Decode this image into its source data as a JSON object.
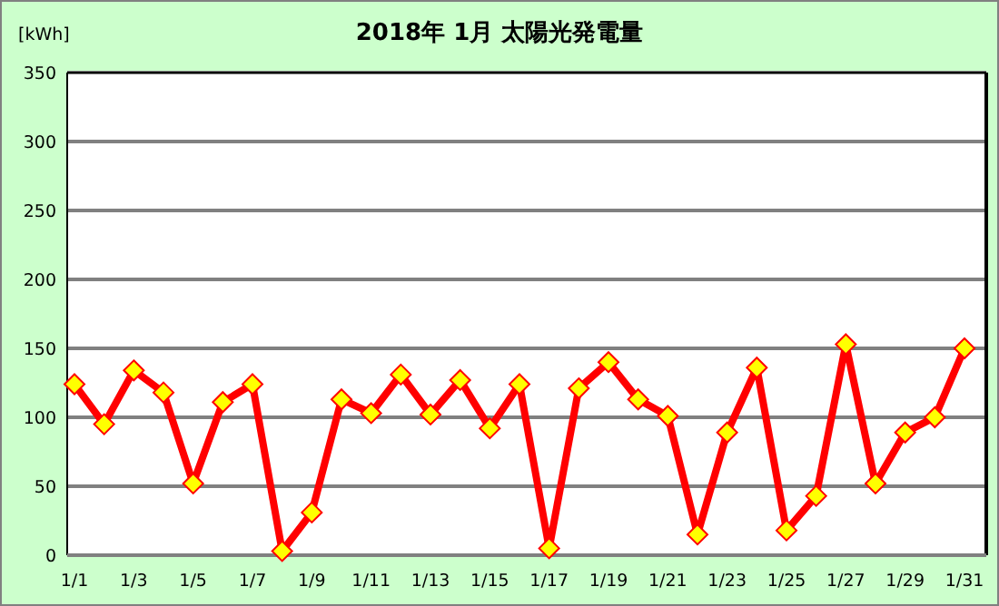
{
  "chart_data": {
    "type": "line",
    "title": "2018年 1月  太陽光発電量",
    "ylabel": "[kWh]",
    "categories": [
      "1/1",
      null,
      "1/3",
      null,
      "1/5",
      null,
      "1/7",
      null,
      "1/9",
      null,
      "1/11",
      null,
      "1/13",
      null,
      "1/15",
      null,
      "1/17",
      null,
      "1/19",
      null,
      "1/21",
      null,
      "1/23",
      null,
      "1/25",
      null,
      "1/27",
      null,
      "1/29",
      null,
      "1/31"
    ],
    "values": [
      124,
      95,
      134,
      118,
      52,
      111,
      124,
      3,
      31,
      113,
      103,
      131,
      102,
      127,
      92,
      124,
      5,
      121,
      140,
      113,
      101,
      15,
      89,
      136,
      18,
      43,
      153,
      52,
      89,
      100,
      150
    ],
    "color": "#ff0000",
    "marker": "diamond",
    "ylim": [
      0,
      350
    ],
    "yticks": [
      0,
      50,
      100,
      150,
      200,
      250,
      300,
      350
    ],
    "grid": "y"
  }
}
